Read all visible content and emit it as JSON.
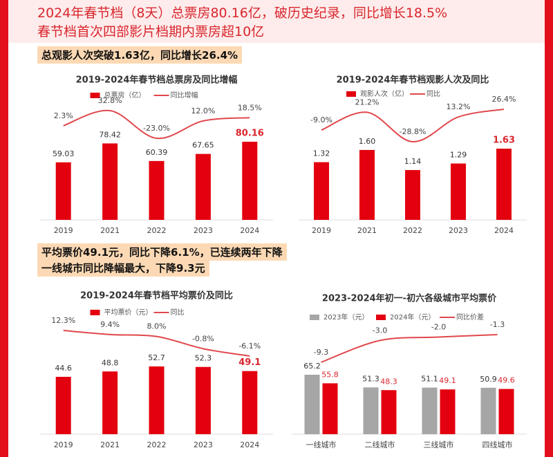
{
  "headlines": [
    "2024年春节档（8天）总票房80.16亿，破历史纪录，同比增长18.5%",
    "春节档首次四部影片档期内票房超10亿"
  ],
  "notes": [
    "总观影人次突破1.63亿，同比增长26.4%",
    "平均票价49.1元，同比下降6.1%，已连续两年下降",
    "一线城市同比降幅最大，下降9.3元"
  ],
  "chart_data": [
    {
      "type": "combo",
      "title": "2019-2024年春节档总票房及同比增幅",
      "categories": [
        "2019",
        "2021",
        "2022",
        "2023",
        "2024"
      ],
      "series": [
        {
          "name": "总票房（亿）",
          "type": "bar",
          "color": "#e3000f",
          "values": [
            59.03,
            78.42,
            60.39,
            67.65,
            80.16
          ],
          "value_labels": [
            "59.03",
            "78.42",
            "60.39",
            "67.65",
            "80.16"
          ]
        },
        {
          "name": "同比增幅",
          "type": "line",
          "axis": "y2",
          "color": "#e0474c",
          "values": [
            2.3,
            32.8,
            -23.0,
            12.0,
            18.5
          ],
          "value_labels": [
            "2.3%",
            "32.8%",
            "-23.0%",
            "12.0%",
            "18.5%"
          ]
        }
      ]
    },
    {
      "type": "combo",
      "title": "2019-2024年春节档观影人次及同比",
      "categories": [
        "2019",
        "2021",
        "2022",
        "2023",
        "2024"
      ],
      "series": [
        {
          "name": "观影人次（亿）",
          "type": "bar",
          "color": "#e3000f",
          "values": [
            1.32,
            1.6,
            1.14,
            1.29,
            1.63
          ],
          "value_labels": [
            "1.32",
            "1.60",
            "1.14",
            "1.29",
            "1.63"
          ]
        },
        {
          "name": "同比",
          "type": "line",
          "axis": "y2",
          "color": "#e0474c",
          "values": [
            -9.0,
            21.2,
            -28.8,
            13.2,
            26.4
          ],
          "value_labels": [
            "-9.0%",
            "21.2%",
            "-28.8%",
            "13.2%",
            "26.4%"
          ]
        }
      ]
    },
    {
      "type": "combo",
      "title": "2019-2024年春节档平均票价及同比",
      "categories": [
        "2019",
        "2021",
        "2022",
        "2023",
        "2024"
      ],
      "series": [
        {
          "name": "平均票价（元）",
          "type": "bar",
          "color": "#e3000f",
          "values": [
            44.6,
            48.8,
            52.7,
            52.3,
            49.1
          ],
          "value_labels": [
            "44.6",
            "48.8",
            "52.7",
            "52.3",
            "49.1"
          ]
        },
        {
          "name": "同比",
          "type": "line",
          "axis": "y2",
          "color": "#e0474c",
          "values": [
            12.3,
            9.4,
            8.0,
            -0.8,
            -6.1
          ],
          "value_labels": [
            "12.3%",
            "9.4%",
            "8.0%",
            "-0.8%",
            "-6.1%"
          ]
        }
      ]
    },
    {
      "type": "combo",
      "title": "2023-2024年初一-初六各级城市平均票价",
      "categories": [
        "一线城市",
        "二线城市",
        "三线城市",
        "四线城市"
      ],
      "series": [
        {
          "name": "2023年（元）",
          "type": "bar",
          "color": "#a6a6a6",
          "values": [
            65.2,
            51.3,
            51.1,
            50.9
          ],
          "value_labels": [
            "65.2",
            "51.3",
            "51.1",
            "50.9"
          ]
        },
        {
          "name": "2024年（元）",
          "type": "bar",
          "color": "#e3000f",
          "values": [
            55.8,
            48.3,
            49.1,
            49.6
          ],
          "value_labels": [
            "55.8",
            "48.3",
            "49.1",
            "49.6"
          ]
        },
        {
          "name": "同比价差",
          "type": "line",
          "axis": "y2",
          "color": "#e0474c",
          "values": [
            -9.3,
            -3.0,
            -2.0,
            -1.3
          ],
          "value_labels": [
            "-9.3",
            "-3.0",
            "-2.0",
            "-1.3"
          ]
        }
      ]
    }
  ]
}
